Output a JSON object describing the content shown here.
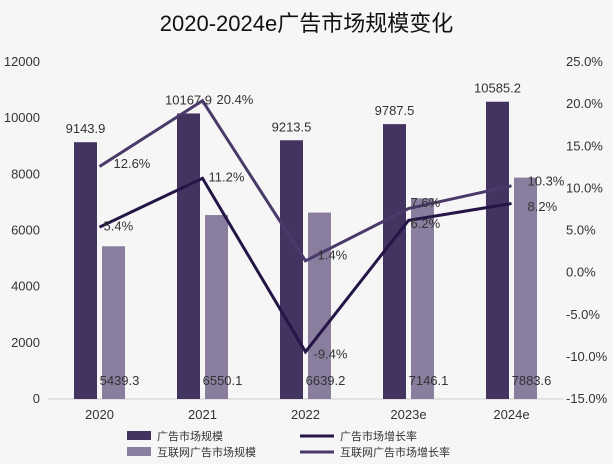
{
  "chart_data": {
    "type": "bar",
    "title": "2020-2024e广告市场规模变化",
    "categories": [
      "2020",
      "2021",
      "2022",
      "2023e",
      "2024e"
    ],
    "ylim_left": [
      0,
      12000
    ],
    "yticks_left": [
      "0",
      "2000",
      "4000",
      "6000",
      "8000",
      "10000",
      "12000"
    ],
    "ylim_right": [
      -15,
      25
    ],
    "yticks_right": [
      "-15.0%",
      "-10.0%",
      "-5.0%",
      "0.0%",
      "5.0%",
      "10.0%",
      "15.0%",
      "20.0%",
      "25.0%"
    ],
    "grid": false,
    "legend_position": "bottom",
    "series": [
      {
        "name": "广告市场规模",
        "kind": "bar",
        "axis": "left",
        "color": "#433360",
        "values": [
          9143.9,
          10167.9,
          9213.5,
          9787.5,
          10585.2
        ],
        "labels": [
          "9143.9",
          "10167.9",
          "9213.5",
          "9787.5",
          "10585.2"
        ]
      },
      {
        "name": "互联网广告市场规模",
        "kind": "bar",
        "axis": "left",
        "color": "#8a7e9f",
        "values": [
          5439.3,
          6550.1,
          6639.2,
          7146.1,
          7883.6
        ],
        "labels": [
          "5439.3",
          "6550.1",
          "6639.2",
          "7146.1",
          "7883.6"
        ]
      },
      {
        "name": "广告市场增长率",
        "kind": "line",
        "axis": "right",
        "color": "#241546",
        "values": [
          5.4,
          11.2,
          -9.4,
          6.2,
          8.2
        ],
        "labels": [
          "5.4%",
          "11.2%",
          "-9.4%",
          "6.2%",
          "8.2%"
        ]
      },
      {
        "name": "互联网广告市场增长率",
        "kind": "line",
        "axis": "right",
        "color": "#4a3a6a",
        "values": [
          12.6,
          20.4,
          1.4,
          7.6,
          10.3
        ],
        "labels": [
          "12.6%",
          "20.4%",
          "1.4%",
          "7.6%",
          "10.3%"
        ]
      }
    ]
  }
}
